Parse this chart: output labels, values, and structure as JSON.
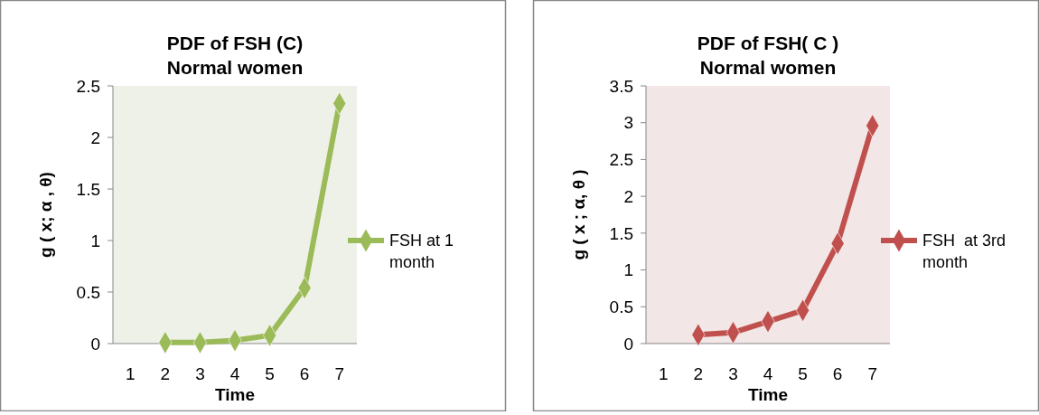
{
  "chart_data": [
    {
      "type": "line",
      "title": "PDF of FSH (C)",
      "subtitle": "Normal women",
      "xlabel": "Time",
      "ylabel": "g ( x; α , θ)",
      "categories": [
        "1",
        "2",
        "3",
        "4",
        "5",
        "6",
        "7"
      ],
      "series": [
        {
          "name": "FSH at 1 month",
          "color": "#9bbb59",
          "values": [
            null,
            0.01,
            0.01,
            0.03,
            0.08,
            0.54,
            2.33
          ]
        }
      ],
      "ylim": [
        0,
        2.5
      ],
      "yticks": [
        0,
        0.5,
        1,
        1.5,
        2,
        2.5
      ],
      "marker": "diamond",
      "legend": "right",
      "grid": false
    },
    {
      "type": "line",
      "title": "PDF of FSH( C )",
      "subtitle": "Normal women",
      "xlabel": "Time",
      "ylabel": "g ( x ; α, θ )",
      "categories": [
        "1",
        "2",
        "3",
        "4",
        "5",
        "6",
        "7"
      ],
      "series": [
        {
          "name": "FSH  at 3rd month",
          "color": "#c0504d",
          "values": [
            null,
            0.12,
            0.15,
            0.3,
            0.45,
            1.36,
            2.96
          ]
        }
      ],
      "ylim": [
        0,
        3.5
      ],
      "yticks": [
        0,
        0.5,
        1,
        1.5,
        2,
        2.5,
        3,
        3.5
      ],
      "marker": "diamond",
      "legend": "right",
      "grid": false
    }
  ]
}
